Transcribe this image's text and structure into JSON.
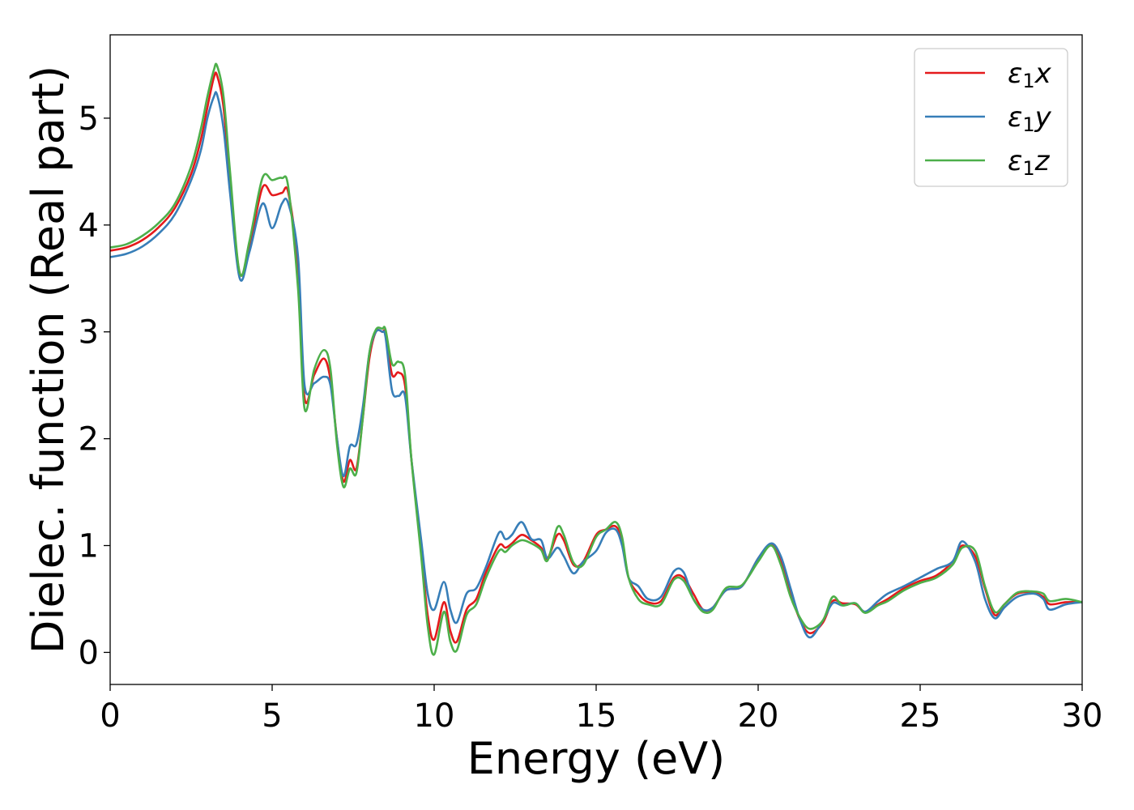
{
  "chart_data": {
    "type": "line",
    "title": "",
    "xlabel": "Energy (eV)",
    "ylabel": "Dielec. function (Real part)",
    "xlim": [
      0,
      30
    ],
    "ylim": [
      -0.3,
      5.78
    ],
    "xticks": [
      0,
      5,
      10,
      15,
      20,
      25,
      30
    ],
    "yticks": [
      0,
      1,
      2,
      3,
      4,
      5
    ],
    "grid": false,
    "legend_position": "top-right",
    "series": [
      {
        "name": "ε1x",
        "legend_base": "ε",
        "legend_sub": "1",
        "legend_var": "x",
        "color": "#e41a1c",
        "x": [
          0,
          0.5,
          1,
          1.5,
          2,
          2.5,
          2.8,
          3,
          3.2,
          3.3,
          3.5,
          3.7,
          4.0,
          4.3,
          4.7,
          5.0,
          5.3,
          5.5,
          5.8,
          6.0,
          6.3,
          6.6,
          6.8,
          7.0,
          7.2,
          7.4,
          7.6,
          7.8,
          8.0,
          8.2,
          8.4,
          8.5,
          8.7,
          8.9,
          9.1,
          9.3,
          9.6,
          9.8,
          10.0,
          10.3,
          10.5,
          10.7,
          11.0,
          11.3,
          11.6,
          12.0,
          12.2,
          12.4,
          12.7,
          13.0,
          13.3,
          13.5,
          13.8,
          14.0,
          14.3,
          14.6,
          15.0,
          15.3,
          15.6,
          15.8,
          16.0,
          16.3,
          16.6,
          17.0,
          17.4,
          17.7,
          18.0,
          18.3,
          18.6,
          19.0,
          19.5,
          20.0,
          20.4,
          20.7,
          21.0,
          21.3,
          21.6,
          22.0,
          22.3,
          22.6,
          23.0,
          23.3,
          23.7,
          24.0,
          24.5,
          25.0,
          25.5,
          26.0,
          26.3,
          26.7,
          27.0,
          27.3,
          27.6,
          28.0,
          28.5,
          28.8,
          29.0,
          29.5,
          30.0
        ],
        "y": [
          3.76,
          3.79,
          3.86,
          3.98,
          4.16,
          4.48,
          4.8,
          5.1,
          5.38,
          5.4,
          5.1,
          4.4,
          3.55,
          3.8,
          4.35,
          4.28,
          4.3,
          4.3,
          3.6,
          2.38,
          2.6,
          2.75,
          2.55,
          2.0,
          1.6,
          1.8,
          1.72,
          2.2,
          2.75,
          3.0,
          3.0,
          2.98,
          2.6,
          2.62,
          2.5,
          1.8,
          0.95,
          0.35,
          0.12,
          0.47,
          0.2,
          0.1,
          0.4,
          0.5,
          0.75,
          1.0,
          0.98,
          1.02,
          1.1,
          1.05,
          0.98,
          0.88,
          1.1,
          1.05,
          0.82,
          0.85,
          1.1,
          1.15,
          1.18,
          1.05,
          0.7,
          0.55,
          0.47,
          0.48,
          0.7,
          0.7,
          0.55,
          0.4,
          0.42,
          0.58,
          0.62,
          0.88,
          1.01,
          0.85,
          0.55,
          0.3,
          0.18,
          0.28,
          0.48,
          0.46,
          0.45,
          0.38,
          0.45,
          0.5,
          0.6,
          0.67,
          0.72,
          0.85,
          1.0,
          0.9,
          0.6,
          0.35,
          0.45,
          0.55,
          0.56,
          0.52,
          0.45,
          0.47,
          0.47
        ]
      },
      {
        "name": "ε1y",
        "legend_base": "ε",
        "legend_sub": "1",
        "legend_var": "y",
        "color": "#377eb8",
        "x": [
          0,
          0.5,
          1,
          1.5,
          2,
          2.5,
          2.8,
          3,
          3.2,
          3.3,
          3.5,
          3.7,
          4.0,
          4.3,
          4.7,
          5.0,
          5.3,
          5.5,
          5.8,
          6.0,
          6.3,
          6.6,
          6.8,
          7.0,
          7.2,
          7.4,
          7.6,
          7.8,
          8.0,
          8.2,
          8.4,
          8.5,
          8.7,
          8.9,
          9.1,
          9.3,
          9.6,
          9.8,
          10.0,
          10.3,
          10.5,
          10.7,
          11.0,
          11.3,
          11.6,
          12.0,
          12.2,
          12.4,
          12.7,
          13.0,
          13.3,
          13.5,
          13.8,
          14.0,
          14.3,
          14.6,
          15.0,
          15.3,
          15.6,
          15.8,
          16.0,
          16.3,
          16.6,
          17.0,
          17.4,
          17.7,
          18.0,
          18.3,
          18.6,
          19.0,
          19.5,
          20.0,
          20.4,
          20.7,
          21.0,
          21.3,
          21.6,
          22.0,
          22.3,
          22.6,
          23.0,
          23.3,
          23.7,
          24.0,
          24.5,
          25.0,
          25.5,
          26.0,
          26.3,
          26.7,
          27.0,
          27.3,
          27.6,
          28.0,
          28.5,
          28.8,
          29.0,
          29.5,
          30.0
        ],
        "y": [
          3.7,
          3.73,
          3.8,
          3.92,
          4.1,
          4.42,
          4.7,
          5.0,
          5.2,
          5.22,
          4.9,
          4.3,
          3.5,
          3.75,
          4.2,
          3.97,
          4.2,
          4.2,
          3.7,
          2.5,
          2.52,
          2.58,
          2.5,
          2.0,
          1.65,
          1.93,
          1.95,
          2.3,
          2.8,
          3.0,
          3.0,
          2.95,
          2.45,
          2.4,
          2.4,
          1.8,
          1.05,
          0.55,
          0.4,
          0.66,
          0.4,
          0.28,
          0.55,
          0.6,
          0.8,
          1.12,
          1.06,
          1.1,
          1.22,
          1.06,
          1.05,
          0.88,
          0.98,
          0.9,
          0.74,
          0.85,
          0.95,
          1.12,
          1.15,
          1.0,
          0.7,
          0.62,
          0.5,
          0.52,
          0.76,
          0.75,
          0.5,
          0.4,
          0.42,
          0.58,
          0.62,
          0.88,
          1.02,
          0.9,
          0.6,
          0.3,
          0.14,
          0.3,
          0.46,
          0.44,
          0.46,
          0.38,
          0.48,
          0.55,
          0.62,
          0.7,
          0.78,
          0.85,
          1.04,
          0.85,
          0.5,
          0.32,
          0.42,
          0.52,
          0.55,
          0.5,
          0.4,
          0.45,
          0.47
        ]
      },
      {
        "name": "ε1z",
        "legend_base": "ε",
        "legend_sub": "1",
        "legend_var": "z",
        "color": "#4daf4a",
        "x": [
          0,
          0.5,
          1,
          1.5,
          2,
          2.5,
          2.8,
          3,
          3.2,
          3.3,
          3.5,
          3.7,
          4.0,
          4.3,
          4.7,
          5.0,
          5.3,
          5.5,
          5.8,
          6.0,
          6.3,
          6.6,
          6.8,
          7.0,
          7.2,
          7.4,
          7.6,
          7.8,
          8.0,
          8.2,
          8.4,
          8.5,
          8.7,
          8.9,
          9.1,
          9.3,
          9.6,
          9.8,
          10.0,
          10.3,
          10.5,
          10.7,
          11.0,
          11.3,
          11.6,
          12.0,
          12.2,
          12.4,
          12.7,
          13.0,
          13.3,
          13.5,
          13.8,
          14.0,
          14.3,
          14.6,
          15.0,
          15.3,
          15.6,
          15.8,
          16.0,
          16.3,
          16.6,
          17.0,
          17.4,
          17.7,
          18.0,
          18.3,
          18.6,
          19.0,
          19.5,
          20.0,
          20.4,
          20.7,
          21.0,
          21.3,
          21.6,
          22.0,
          22.3,
          22.6,
          23.0,
          23.3,
          23.7,
          24.0,
          24.5,
          25.0,
          25.5,
          26.0,
          26.3,
          26.7,
          27.0,
          27.3,
          27.6,
          28.0,
          28.5,
          28.8,
          29.0,
          29.5,
          30.0
        ],
        "y": [
          3.79,
          3.82,
          3.9,
          4.02,
          4.2,
          4.55,
          4.9,
          5.2,
          5.45,
          5.49,
          5.2,
          4.5,
          3.55,
          3.85,
          4.44,
          4.42,
          4.44,
          4.35,
          3.4,
          2.28,
          2.65,
          2.83,
          2.65,
          1.95,
          1.55,
          1.72,
          1.68,
          2.2,
          2.8,
          3.02,
          3.03,
          3.02,
          2.7,
          2.72,
          2.6,
          1.8,
          0.9,
          0.25,
          -0.02,
          0.38,
          0.1,
          0.02,
          0.35,
          0.45,
          0.7,
          0.95,
          0.94,
          1.0,
          1.05,
          1.02,
          0.96,
          0.86,
          1.17,
          1.1,
          0.84,
          0.82,
          1.08,
          1.15,
          1.22,
          1.08,
          0.7,
          0.5,
          0.45,
          0.45,
          0.68,
          0.67,
          0.5,
          0.38,
          0.4,
          0.6,
          0.63,
          0.85,
          1.0,
          0.82,
          0.52,
          0.32,
          0.22,
          0.3,
          0.52,
          0.44,
          0.46,
          0.37,
          0.44,
          0.48,
          0.58,
          0.65,
          0.7,
          0.82,
          0.98,
          0.95,
          0.62,
          0.38,
          0.45,
          0.56,
          0.57,
          0.55,
          0.48,
          0.5,
          0.47
        ]
      }
    ]
  }
}
